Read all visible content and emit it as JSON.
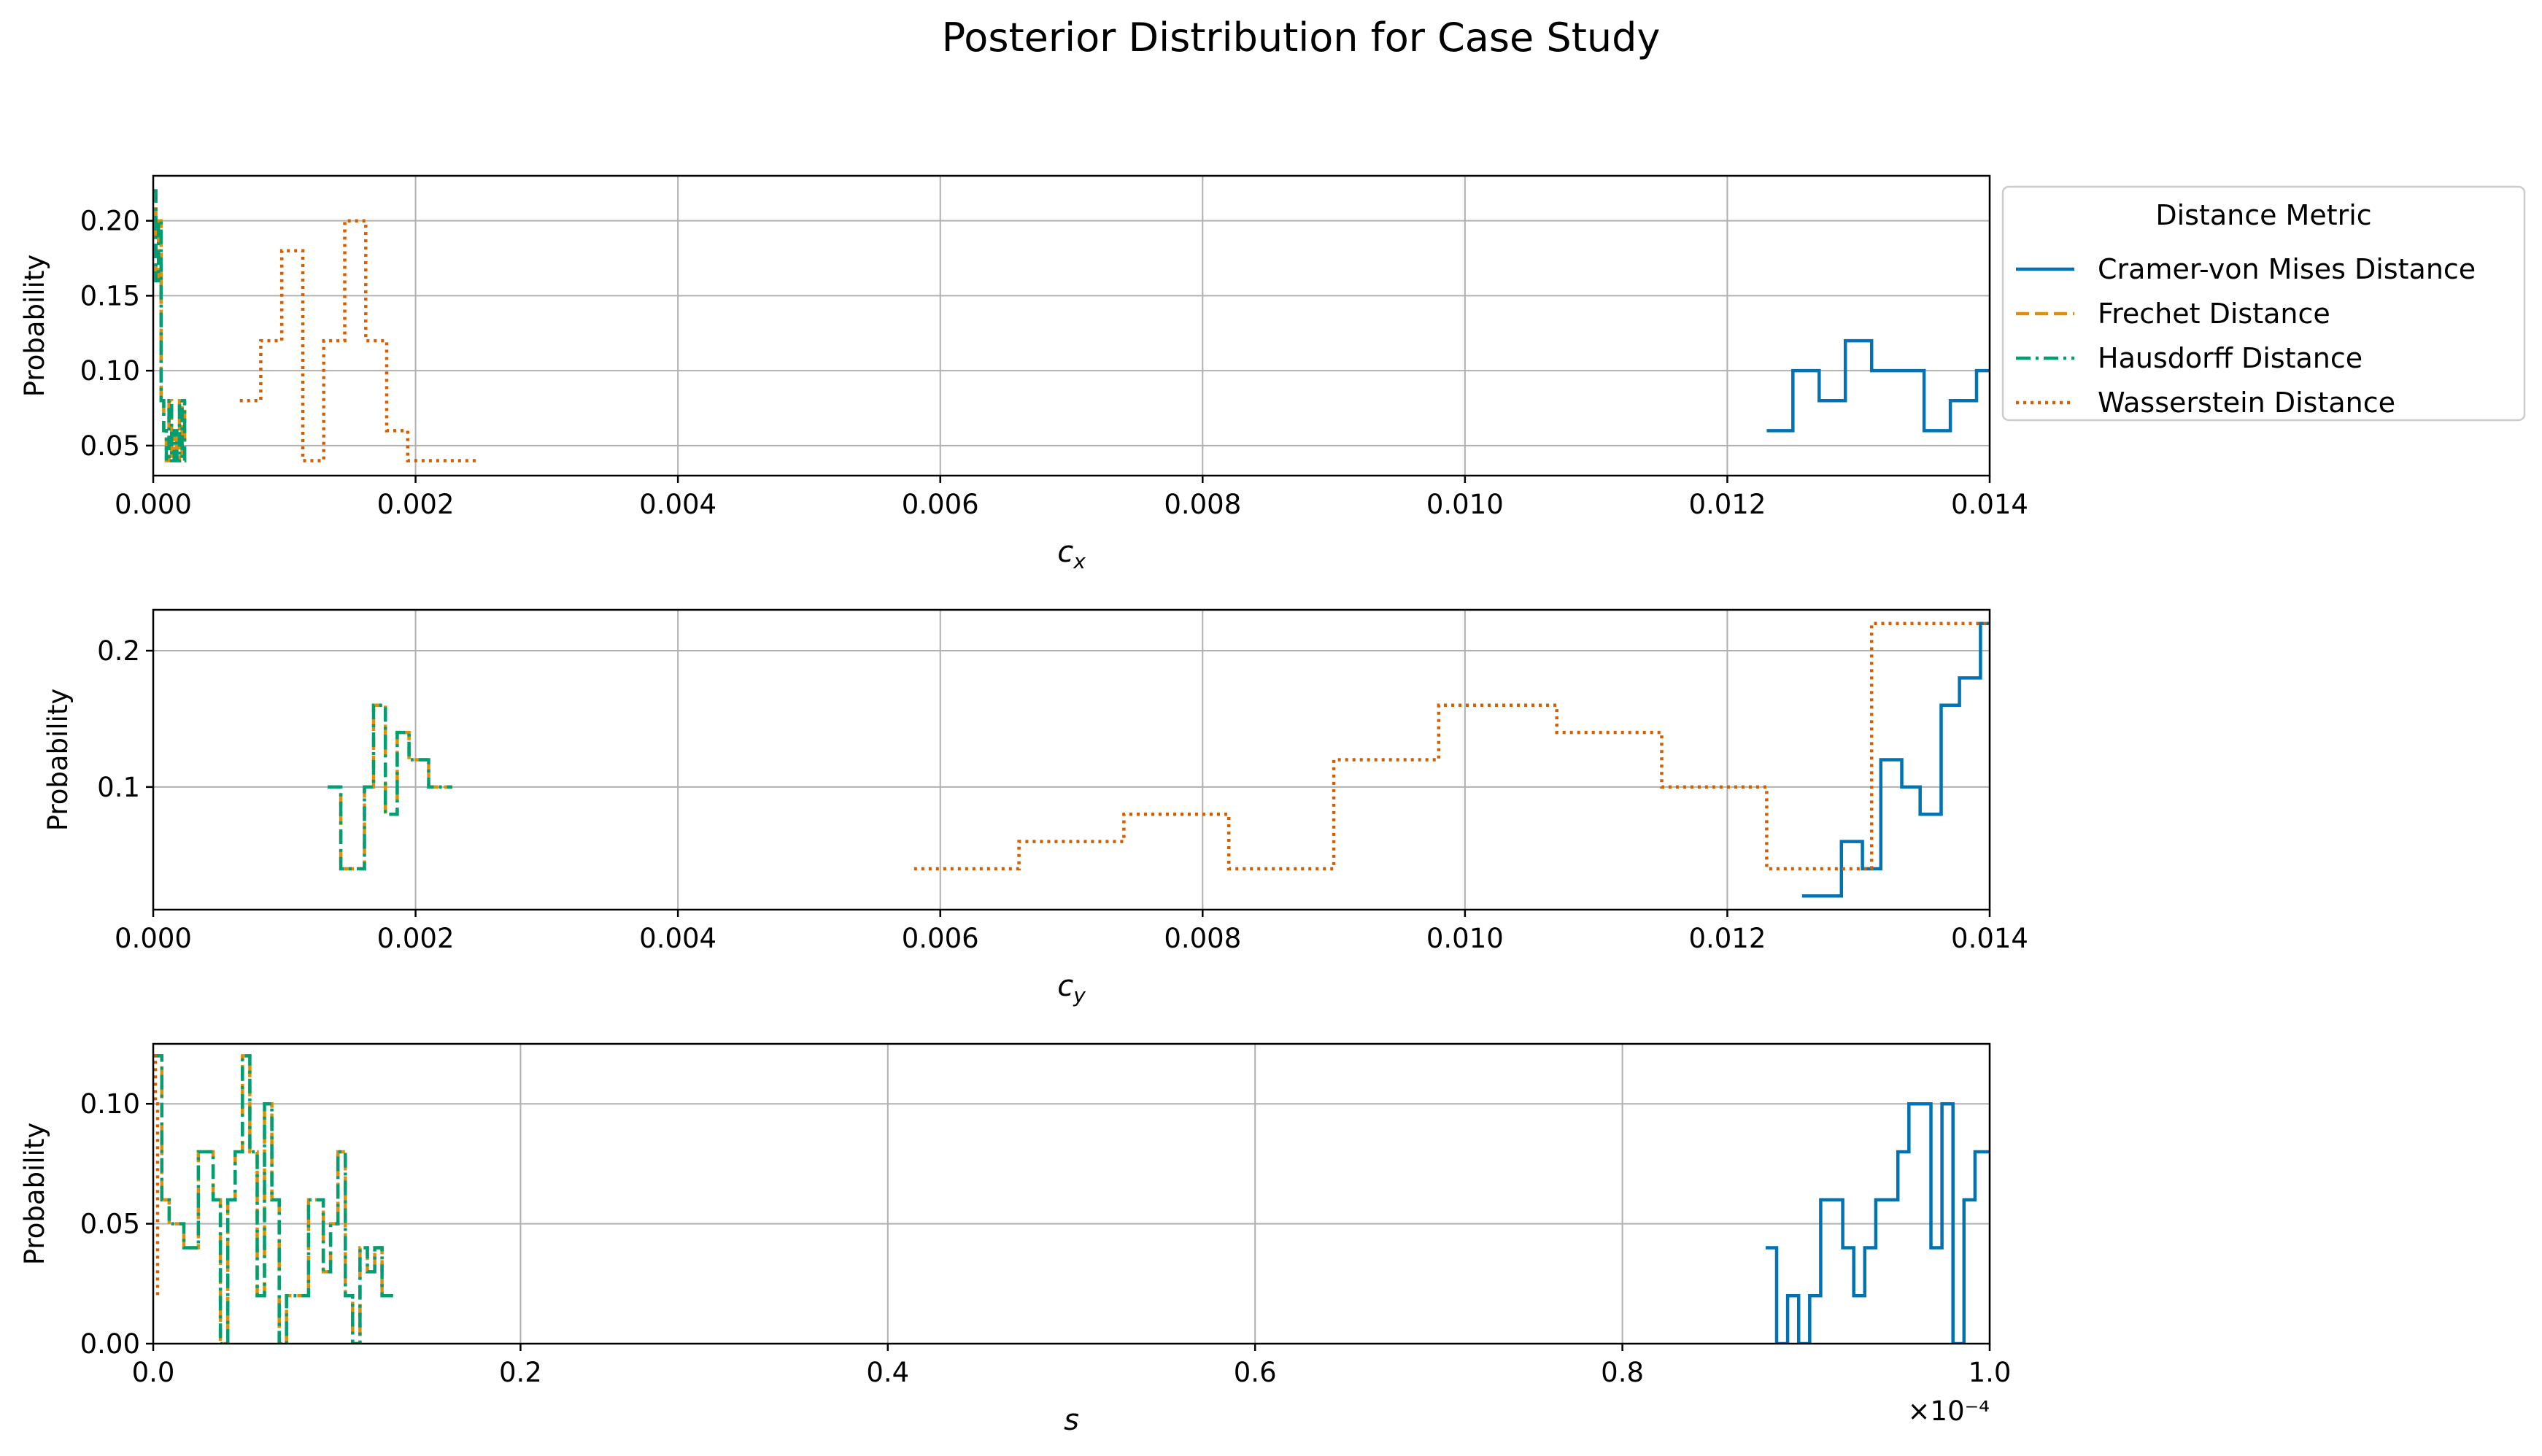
{
  "figure": {
    "title": "Posterior Distribution for Case Study",
    "legend": {
      "title": "Distance Metric",
      "placement": "outside right of top panel",
      "entries": [
        {
          "label": "Cramer-von Mises Distance",
          "color": "#0173b2",
          "dash": "solid"
        },
        {
          "label": "Frechet Distance",
          "color": "#de8f05",
          "dash": "dashed"
        },
        {
          "label": "Hausdorff Distance",
          "color": "#029e73",
          "dash": "dashdot"
        },
        {
          "label": "Wasserstein Distance",
          "color": "#d55e00",
          "dash": "dotted"
        }
      ]
    }
  },
  "chart_data": [
    {
      "type": "line",
      "style": "step histogram",
      "xlabel": "c_x",
      "ylabel": "Probability",
      "xlim": [
        0,
        0.014
      ],
      "ylim": [
        0.03,
        0.23
      ],
      "xticks": [
        0,
        0.002,
        0.004,
        0.006,
        0.008,
        0.01,
        0.012,
        0.014
      ],
      "xtick_labels": [
        "0.000",
        "0.002",
        "0.004",
        "0.006",
        "0.008",
        "0.010",
        "0.012",
        "0.014"
      ],
      "yticks": [
        0.05,
        0.1,
        0.15,
        0.2
      ],
      "ytick_labels": [
        "0.05",
        "0.10",
        "0.15",
        "0.20"
      ],
      "grid": true,
      "series": [
        {
          "name": "Cramer-von Mises Distance",
          "x": [
            0.0123,
            0.0125,
            0.0127,
            0.0129,
            0.0131,
            0.0133,
            0.0135,
            0.0137,
            0.0139,
            0.0141
          ],
          "y": [
            0.06,
            0.1,
            0.08,
            0.12,
            0.1,
            0.1,
            0.06,
            0.08,
            0.1,
            0.2
          ]
        },
        {
          "name": "Frechet Distance",
          "x": [
            0.0,
            2e-05,
            4e-05,
            6e-05,
            8e-05,
            0.0001,
            0.00012,
            0.00014,
            0.00016,
            0.00018,
            0.0002,
            0.00022,
            0.00024
          ],
          "y": [
            0.22,
            0.16,
            0.2,
            0.08,
            0.06,
            0.04,
            0.08,
            0.04,
            0.06,
            0.04,
            0.08,
            0.04,
            0.08
          ]
        },
        {
          "name": "Hausdorff Distance",
          "x": [
            0.0,
            2e-05,
            4e-05,
            6e-05,
            8e-05,
            0.0001,
            0.00012,
            0.00014,
            0.00016,
            0.00018,
            0.0002,
            0.00022,
            0.00024
          ],
          "y": [
            0.22,
            0.16,
            0.2,
            0.08,
            0.06,
            0.04,
            0.08,
            0.04,
            0.06,
            0.04,
            0.08,
            0.04,
            0.08
          ]
        },
        {
          "name": "Wasserstein Distance",
          "x": [
            0.00066,
            0.00082,
            0.00098,
            0.00114,
            0.0013,
            0.00146,
            0.00162,
            0.00178,
            0.00194,
            0.0021,
            0.00234
          ],
          "y": [
            0.08,
            0.12,
            0.18,
            0.04,
            0.12,
            0.2,
            0.12,
            0.06,
            0.04,
            0.04,
            0.04
          ]
        }
      ]
    },
    {
      "type": "line",
      "style": "step histogram",
      "xlabel": "c_y",
      "ylabel": "Probability",
      "xlim": [
        0,
        0.014
      ],
      "ylim": [
        0.01,
        0.23
      ],
      "xticks": [
        0,
        0.002,
        0.004,
        0.006,
        0.008,
        0.01,
        0.012,
        0.014
      ],
      "xtick_labels": [
        "0.000",
        "0.002",
        "0.004",
        "0.006",
        "0.008",
        "0.010",
        "0.012",
        "0.014"
      ],
      "yticks": [
        0.1,
        0.2
      ],
      "ytick_labels": [
        "0.1",
        "0.2"
      ],
      "grid": true,
      "series": [
        {
          "name": "Cramer-von Mises Distance",
          "x": [
            0.01257,
            0.01287,
            0.01303,
            0.01317,
            0.01333,
            0.01347,
            0.01363,
            0.01377,
            0.01393,
            0.0141
          ],
          "y": [
            0.02,
            0.06,
            0.04,
            0.12,
            0.1,
            0.08,
            0.16,
            0.18,
            0.22,
            0.22
          ]
        },
        {
          "name": "Frechet Distance",
          "x": [
            0.00133,
            0.00143,
            0.00161,
            0.00168,
            0.00177,
            0.00186,
            0.00195,
            0.0021,
            0.00222
          ],
          "y": [
            0.1,
            0.04,
            0.1,
            0.16,
            0.08,
            0.14,
            0.12,
            0.1,
            0.1
          ]
        },
        {
          "name": "Hausdorff Distance",
          "x": [
            0.00133,
            0.00143,
            0.00161,
            0.00168,
            0.00177,
            0.00186,
            0.00195,
            0.0021,
            0.00222
          ],
          "y": [
            0.1,
            0.04,
            0.1,
            0.16,
            0.08,
            0.14,
            0.12,
            0.1,
            0.1
          ]
        },
        {
          "name": "Wasserstein Distance",
          "x": [
            0.0058,
            0.0066,
            0.0074,
            0.0082,
            0.009,
            0.0098,
            0.0107,
            0.0115,
            0.0123,
            0.0131,
            0.0141
          ],
          "y": [
            0.04,
            0.06,
            0.08,
            0.04,
            0.12,
            0.16,
            0.14,
            0.1,
            0.04,
            0.22,
            0.22
          ]
        }
      ]
    },
    {
      "type": "line",
      "style": "step histogram",
      "xlabel": "s",
      "ylabel": "Probability",
      "x_offset_label": "×10⁻⁴",
      "xlim": [
        0,
        1.0
      ],
      "ylim": [
        0,
        0.125
      ],
      "xticks": [
        0,
        0.2,
        0.4,
        0.6,
        0.8,
        1.0
      ],
      "xtick_labels": [
        "0.0",
        "0.2",
        "0.4",
        "0.6",
        "0.8",
        "1.0"
      ],
      "yticks": [
        0,
        0.05,
        0.1
      ],
      "ytick_labels": [
        "0.00",
        "0.05",
        "0.10"
      ],
      "grid": true,
      "series": [
        {
          "name": "Cramer-von Mises Distance",
          "x": [
            0.878,
            0.884,
            0.89,
            0.896,
            0.902,
            0.908,
            0.914,
            0.92,
            0.926,
            0.932,
            0.938,
            0.944,
            0.95,
            0.956,
            0.962,
            0.968,
            0.974,
            0.98,
            0.986,
            0.992,
            0.998,
            1.004
          ],
          "y": [
            0.04,
            0.0,
            0.02,
            0.0,
            0.02,
            0.06,
            0.06,
            0.04,
            0.02,
            0.04,
            0.06,
            0.06,
            0.08,
            0.1,
            0.1,
            0.04,
            0.1,
            0.0,
            0.06,
            0.08,
            0.08,
            0.08
          ]
        },
        {
          "name": "Frechet Distance",
          "x": [
            0.0,
            0.0047,
            0.0087,
            0.0167,
            0.0246,
            0.0326,
            0.0366,
            0.0406,
            0.0446,
            0.0486,
            0.0526,
            0.0566,
            0.0606,
            0.0646,
            0.0686,
            0.0726,
            0.0766,
            0.0806,
            0.0846,
            0.0886,
            0.0926,
            0.0966,
            0.1006,
            0.1046,
            0.1086,
            0.1126,
            0.1166,
            0.1206,
            0.1246,
            0.1286
          ],
          "y": [
            0.12,
            0.06,
            0.05,
            0.04,
            0.08,
            0.06,
            0.0,
            0.06,
            0.08,
            0.12,
            0.08,
            0.02,
            0.1,
            0.06,
            0.0,
            0.02,
            0.02,
            0.02,
            0.06,
            0.06,
            0.03,
            0.05,
            0.08,
            0.02,
            0.0,
            0.04,
            0.03,
            0.04,
            0.02,
            0.02
          ]
        },
        {
          "name": "Hausdorff Distance",
          "x": [
            0.0,
            0.0047,
            0.0087,
            0.0167,
            0.0246,
            0.0326,
            0.0366,
            0.0406,
            0.0446,
            0.0486,
            0.0526,
            0.0566,
            0.0606,
            0.0646,
            0.0686,
            0.0726,
            0.0766,
            0.0806,
            0.0846,
            0.0886,
            0.0926,
            0.0966,
            0.1006,
            0.1046,
            0.1086,
            0.1126,
            0.1166,
            0.1206,
            0.1246,
            0.1286
          ],
          "y": [
            0.12,
            0.06,
            0.05,
            0.04,
            0.08,
            0.06,
            0.0,
            0.06,
            0.08,
            0.12,
            0.08,
            0.02,
            0.1,
            0.06,
            0.0,
            0.02,
            0.02,
            0.02,
            0.06,
            0.06,
            0.03,
            0.05,
            0.08,
            0.02,
            0.0,
            0.04,
            0.03,
            0.04,
            0.02,
            0.02
          ]
        },
        {
          "name": "Wasserstein Distance",
          "x": [
            0.0,
            0.0012,
            0.0024,
            0.0036
          ],
          "y": [
            0.12,
            0.1,
            0.02,
            0.02
          ]
        }
      ]
    }
  ]
}
